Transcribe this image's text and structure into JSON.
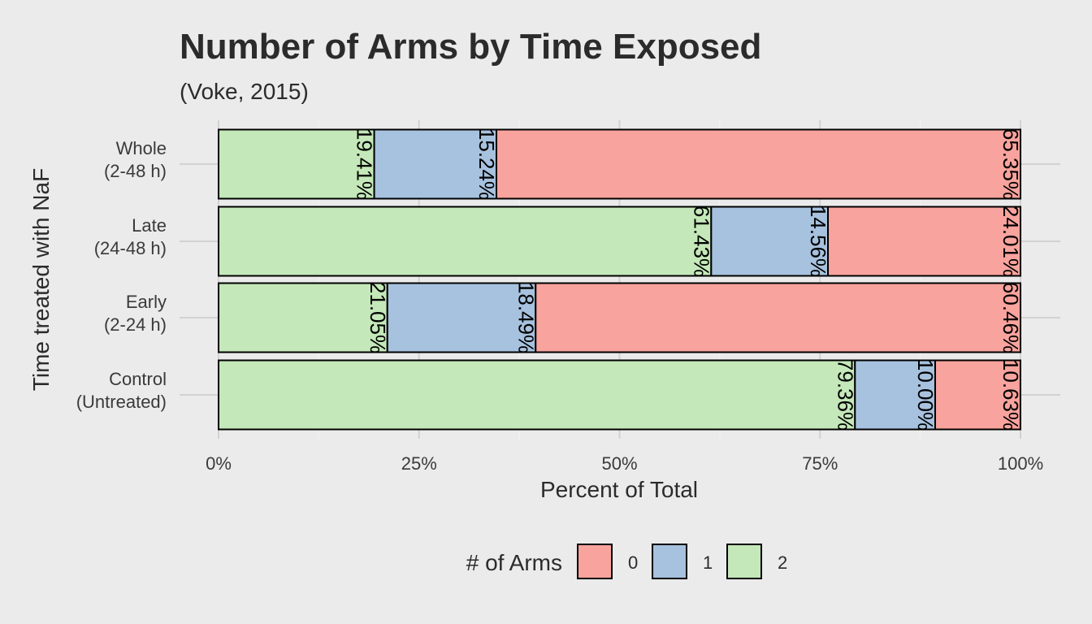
{
  "chart_data": {
    "type": "bar",
    "orientation": "horizontal",
    "stacked": "percent",
    "title": "Number of Arms by Time Exposed",
    "subtitle": "(Voke, 2015)",
    "xlabel": "Percent of Total",
    "ylabel": "Time treated with NaF",
    "xlim": [
      0,
      100
    ],
    "x_ticks": [
      "0%",
      "25%",
      "50%",
      "75%",
      "100%"
    ],
    "grid": true,
    "categories": [
      [
        "Whole",
        "(2-48 h)"
      ],
      [
        "Late",
        "(24-48 h)"
      ],
      [
        "Early",
        "(2-24 h)"
      ],
      [
        "Control",
        "(Untreated)"
      ]
    ],
    "series": [
      {
        "name": "2",
        "color": "#c4e8b9",
        "values": [
          19.41,
          61.43,
          21.05,
          79.36
        ],
        "labels": [
          "19.41%",
          "61.43%",
          "21.05%",
          "79.36%"
        ]
      },
      {
        "name": "1",
        "color": "#a7c2de",
        "values": [
          15.24,
          14.56,
          18.49,
          10.0
        ],
        "labels": [
          "15.24%",
          "14.56%",
          "18.49%",
          "10.00%"
        ]
      },
      {
        "name": "0",
        "color": "#f8a39d",
        "values": [
          65.35,
          24.01,
          60.46,
          10.63
        ],
        "labels": [
          "65.35%",
          "24.01%",
          "60.46%",
          "10.63%"
        ]
      }
    ],
    "legend": {
      "title": "# of Arms",
      "position": "bottom",
      "entries": [
        {
          "label": "0",
          "color": "#f8a39d"
        },
        {
          "label": "1",
          "color": "#a7c2de"
        },
        {
          "label": "2",
          "color": "#c4e8b9"
        }
      ]
    }
  }
}
